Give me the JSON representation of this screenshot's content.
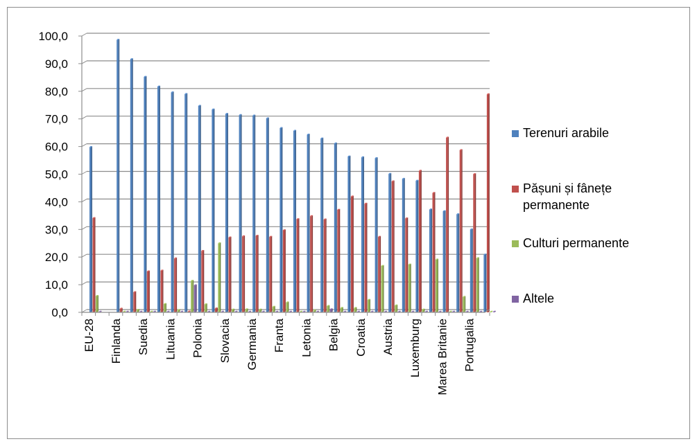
{
  "chart_data": {
    "type": "bar",
    "ylim": [
      0,
      100
    ],
    "ystep": 10,
    "y_tick_labels": [
      "0,0",
      "10,0",
      "20,0",
      "30,0",
      "40,0",
      "50,0",
      "60,0",
      "70,0",
      "80,0",
      "90,0",
      "100,0"
    ],
    "grid": true,
    "legend_position": "right",
    "categories": [
      "EU-28",
      "",
      "Finlanda",
      "",
      "Suedia",
      "",
      "Lituania",
      "",
      "Polonia",
      "",
      "Slovacia",
      "",
      "Germania",
      "",
      "Franta",
      "",
      "Letonia",
      "",
      "Belgia",
      "",
      "Croatia",
      "",
      "Austria",
      "",
      "Luxemburg",
      "",
      "Marea Britanie",
      "",
      "Portugalia",
      ""
    ],
    "series": [
      {
        "name": "Terenuri arabile",
        "color": "#4f81bd",
        "values": [
          59.8,
          0,
          98.6,
          91.6,
          85.2,
          81.7,
          79.6,
          79.0,
          74.7,
          73.4,
          71.8,
          71.4,
          71.2,
          70.2,
          66.7,
          65.7,
          64.3,
          62.9,
          61.1,
          56.4,
          56.1,
          55.8,
          50.1,
          48.3,
          47.6,
          37.2,
          36.6,
          35.5,
          30.0,
          20.9
        ]
      },
      {
        "name": "Pășuni și fânețe permanente",
        "color": "#c0504d",
        "values": [
          34.1,
          0,
          1.3,
          7.3,
          14.8,
          15.1,
          19.5,
          0.3,
          22.2,
          1.4,
          27.1,
          27.5,
          27.7,
          27.3,
          29.7,
          33.7,
          34.8,
          33.6,
          37.1,
          41.9,
          39.3,
          27.3,
          47.4,
          34.0,
          51.2,
          43.2,
          63.2,
          58.7,
          50.0,
          78.9
        ]
      },
      {
        "name": "Culturi permanente",
        "color": "#9bbb59",
        "values": [
          5.9,
          0,
          0.2,
          0.9,
          0.2,
          3.0,
          0.8,
          11.4,
          2.9,
          25.0,
          1.0,
          1.1,
          1.0,
          2.0,
          3.6,
          0.2,
          0.7,
          2.3,
          1.6,
          1.6,
          4.5,
          16.8,
          2.5,
          17.3,
          1.0,
          19.1,
          0.2,
          5.6,
          19.6,
          0.2
        ]
      },
      {
        "name": "Altele",
        "color": "#8064a2",
        "values": [
          0.2,
          0,
          0.2,
          0.2,
          0.2,
          0.2,
          0.2,
          9.8,
          0.2,
          0.2,
          0.2,
          0.2,
          0.2,
          0.2,
          0.2,
          0.2,
          0.2,
          1.1,
          0.2,
          0.2,
          0.2,
          0.2,
          0.2,
          0.2,
          0.2,
          0.2,
          0.2,
          0.2,
          0.2,
          0.2
        ]
      }
    ],
    "legend": [
      "Terenuri arabile",
      "Pășuni și fânețe permanente",
      "Culturi permanente",
      "Altele"
    ]
  }
}
